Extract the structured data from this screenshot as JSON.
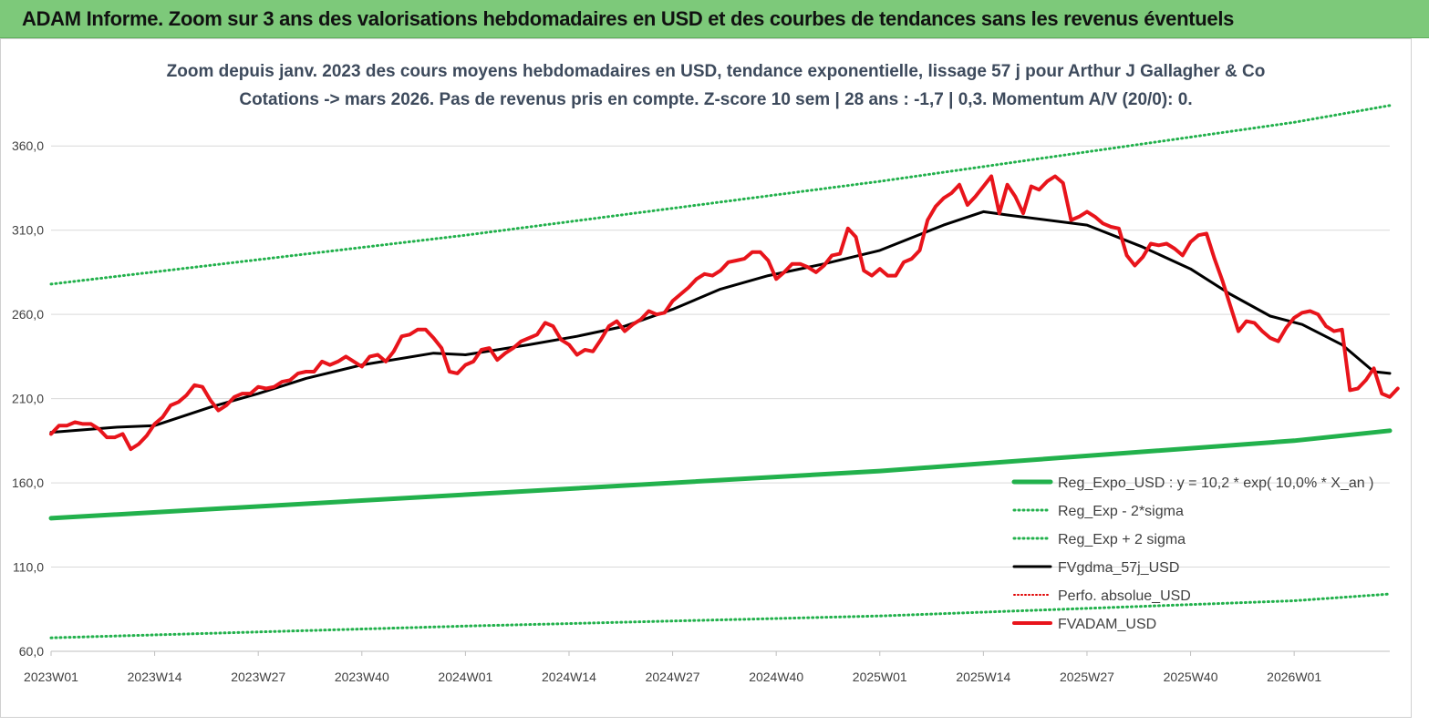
{
  "banner": {
    "title": "ADAM Informe. Zoom sur 3 ans des valorisations hebdomadaires en USD et des courbes de tendances sans les revenus éventuels"
  },
  "chart_data": {
    "type": "line",
    "title": "Zoom depuis janv. 2023 des cours moyens hebdomadaires en USD, tendance exponentielle, lissage 57 j pour Arthur J Gallagher & Co",
    "subtitle": "Cotations -> mars 2026. Pas de revenus pris en compte. Z-score 10 sem | 28 ans : -1,7 | 0,3. Momentum A/V (20/0): 0.",
    "xlabel": "",
    "ylabel": "",
    "x_ticks": [
      "2023W01",
      "2023W14",
      "2023W27",
      "2023W40",
      "2024W01",
      "2024W14",
      "2024W27",
      "2024W40",
      "2025W01",
      "2025W14",
      "2025W27",
      "2025W40",
      "2026W01"
    ],
    "x_range_weeks": [
      0,
      168
    ],
    "y_ticks": [
      "60,0",
      "110,0",
      "160,0",
      "210,0",
      "260,0",
      "310,0",
      "360,0"
    ],
    "ylim": [
      60,
      385
    ],
    "grid": "horizontal",
    "legend_position": "bottom-right",
    "colors": {
      "reg_expo": "#22b14c",
      "sigma_lines": "#22b14c",
      "gdma": "#000000",
      "perfo": "#e00000",
      "price": "#e8141b",
      "banner": "#7dc97a"
    },
    "series": [
      {
        "name": "Reg_Expo_USD : y = 10,2 * exp( 10,0% *  X_an )",
        "style": "solid-thick",
        "points": [
          [
            0,
            139
          ],
          [
            52,
            153
          ],
          [
            104,
            167
          ],
          [
            156,
            185
          ],
          [
            168,
            191
          ]
        ]
      },
      {
        "name": "Reg_Exp - 2*sigma",
        "style": "dotted",
        "points": [
          [
            0,
            68
          ],
          [
            52,
            75
          ],
          [
            104,
            81
          ],
          [
            156,
            90
          ],
          [
            168,
            94
          ]
        ]
      },
      {
        "name": "Reg_Exp + 2 sigma",
        "style": "dotted",
        "points": [
          [
            0,
            278
          ],
          [
            52,
            307
          ],
          [
            104,
            339
          ],
          [
            156,
            374
          ],
          [
            168,
            384
          ]
        ]
      },
      {
        "name": "FVgdma_57j_USD",
        "style": "solid",
        "points": [
          [
            0,
            190
          ],
          [
            8,
            193
          ],
          [
            13,
            194
          ],
          [
            20,
            205
          ],
          [
            26,
            213
          ],
          [
            32,
            222
          ],
          [
            39,
            230
          ],
          [
            48,
            237
          ],
          [
            52,
            236
          ],
          [
            60,
            242
          ],
          [
            66,
            247
          ],
          [
            72,
            253
          ],
          [
            78,
            263
          ],
          [
            84,
            275
          ],
          [
            90,
            283
          ],
          [
            97,
            290
          ],
          [
            104,
            298
          ],
          [
            112,
            313
          ],
          [
            117,
            321
          ],
          [
            120,
            319
          ],
          [
            130,
            313
          ],
          [
            137,
            300
          ],
          [
            143,
            287
          ],
          [
            148,
            272
          ],
          [
            153,
            259
          ],
          [
            157,
            254
          ],
          [
            162,
            242
          ],
          [
            166,
            226
          ],
          [
            168,
            225
          ]
        ]
      },
      {
        "name": "Perfo. absolue_USD",
        "style": "dotted",
        "points": []
      },
      {
        "name": "FVADAM_USD",
        "style": "solid-thick",
        "points": [
          [
            0,
            189
          ],
          [
            1,
            194
          ],
          [
            2,
            194
          ],
          [
            3,
            196
          ],
          [
            4,
            195
          ],
          [
            5,
            195
          ],
          [
            6,
            192
          ],
          [
            7,
            187
          ],
          [
            8,
            187
          ],
          [
            9,
            189
          ],
          [
            10,
            180
          ],
          [
            11,
            183
          ],
          [
            12,
            188
          ],
          [
            13,
            195
          ],
          [
            14,
            199
          ],
          [
            15,
            206
          ],
          [
            16,
            208
          ],
          [
            17,
            212
          ],
          [
            18,
            218
          ],
          [
            19,
            217
          ],
          [
            20,
            209
          ],
          [
            21,
            203
          ],
          [
            22,
            206
          ],
          [
            23,
            211
          ],
          [
            24,
            213
          ],
          [
            25,
            213
          ],
          [
            26,
            217
          ],
          [
            27,
            216
          ],
          [
            28,
            217
          ],
          [
            29,
            220
          ],
          [
            30,
            221
          ],
          [
            31,
            225
          ],
          [
            32,
            226
          ],
          [
            33,
            226
          ],
          [
            34,
            232
          ],
          [
            35,
            230
          ],
          [
            36,
            232
          ],
          [
            37,
            235
          ],
          [
            38,
            232
          ],
          [
            39,
            229
          ],
          [
            40,
            235
          ],
          [
            41,
            236
          ],
          [
            42,
            232
          ],
          [
            43,
            238
          ],
          [
            44,
            247
          ],
          [
            45,
            248
          ],
          [
            46,
            251
          ],
          [
            47,
            251
          ],
          [
            48,
            246
          ],
          [
            49,
            240
          ],
          [
            50,
            226
          ],
          [
            51,
            225
          ],
          [
            52,
            230
          ],
          [
            53,
            232
          ],
          [
            54,
            239
          ],
          [
            55,
            240
          ],
          [
            56,
            233
          ],
          [
            57,
            237
          ],
          [
            58,
            240
          ],
          [
            59,
            244
          ],
          [
            60,
            246
          ],
          [
            61,
            248
          ],
          [
            62,
            255
          ],
          [
            63,
            253
          ],
          [
            64,
            245
          ],
          [
            65,
            242
          ],
          [
            66,
            236
          ],
          [
            67,
            239
          ],
          [
            68,
            238
          ],
          [
            69,
            245
          ],
          [
            70,
            253
          ],
          [
            71,
            256
          ],
          [
            72,
            250
          ],
          [
            73,
            254
          ],
          [
            74,
            257
          ],
          [
            75,
            262
          ],
          [
            76,
            260
          ],
          [
            77,
            261
          ],
          [
            78,
            268
          ],
          [
            79,
            272
          ],
          [
            80,
            276
          ],
          [
            81,
            281
          ],
          [
            82,
            284
          ],
          [
            83,
            283
          ],
          [
            84,
            286
          ],
          [
            85,
            291
          ],
          [
            86,
            292
          ],
          [
            87,
            293
          ],
          [
            88,
            297
          ],
          [
            89,
            297
          ],
          [
            90,
            292
          ],
          [
            91,
            281
          ],
          [
            92,
            285
          ],
          [
            93,
            290
          ],
          [
            94,
            290
          ],
          [
            95,
            288
          ],
          [
            96,
            285
          ],
          [
            97,
            289
          ],
          [
            98,
            295
          ],
          [
            99,
            296
          ],
          [
            100,
            311
          ],
          [
            101,
            306
          ],
          [
            102,
            286
          ],
          [
            103,
            283
          ],
          [
            104,
            287
          ],
          [
            105,
            283
          ],
          [
            106,
            283
          ],
          [
            107,
            291
          ],
          [
            108,
            293
          ],
          [
            109,
            298
          ],
          [
            110,
            316
          ],
          [
            111,
            324
          ],
          [
            112,
            329
          ],
          [
            113,
            332
          ],
          [
            114,
            337
          ],
          [
            115,
            325
          ],
          [
            116,
            330
          ],
          [
            117,
            336
          ],
          [
            118,
            342
          ],
          [
            119,
            320
          ],
          [
            120,
            337
          ],
          [
            121,
            330
          ],
          [
            122,
            320
          ],
          [
            123,
            336
          ],
          [
            124,
            334
          ],
          [
            125,
            339
          ],
          [
            126,
            342
          ],
          [
            127,
            338
          ],
          [
            128,
            316
          ],
          [
            129,
            318
          ],
          [
            130,
            321
          ],
          [
            131,
            318
          ],
          [
            132,
            314
          ],
          [
            133,
            312
          ],
          [
            134,
            311
          ],
          [
            135,
            295
          ],
          [
            136,
            289
          ],
          [
            137,
            294
          ],
          [
            138,
            302
          ],
          [
            139,
            301
          ],
          [
            140,
            302
          ],
          [
            141,
            299
          ],
          [
            142,
            295
          ],
          [
            143,
            303
          ],
          [
            144,
            307
          ],
          [
            145,
            308
          ],
          [
            146,
            293
          ],
          [
            147,
            280
          ],
          [
            148,
            265
          ],
          [
            149,
            250
          ],
          [
            150,
            256
          ],
          [
            151,
            255
          ],
          [
            152,
            250
          ],
          [
            153,
            246
          ],
          [
            154,
            244
          ],
          [
            155,
            252
          ],
          [
            156,
            258
          ],
          [
            157,
            261
          ],
          [
            158,
            262
          ],
          [
            159,
            260
          ],
          [
            160,
            253
          ],
          [
            161,
            250
          ],
          [
            162,
            251
          ],
          [
            163,
            215
          ],
          [
            164,
            216
          ],
          [
            165,
            221
          ],
          [
            166,
            228
          ],
          [
            167,
            213
          ],
          [
            168,
            211
          ],
          [
            169,
            216
          ]
        ]
      }
    ]
  }
}
